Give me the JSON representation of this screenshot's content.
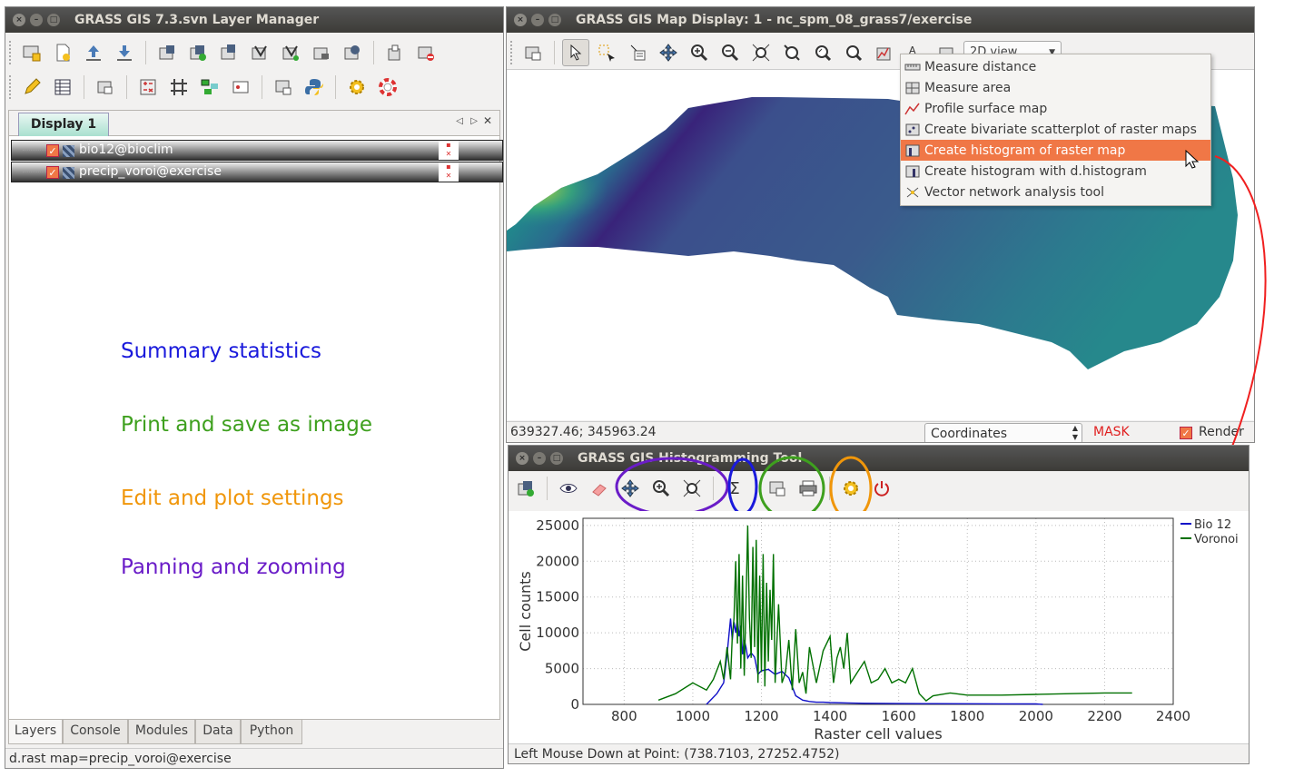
{
  "layer_manager": {
    "title": "GRASS GIS 7.3.svn Layer Manager",
    "display_tab": "Display 1",
    "layers": [
      {
        "name": "bio12@bioclim"
      },
      {
        "name": "precip_voroi@exercise"
      }
    ],
    "bottom_tabs": [
      "Layers",
      "Console",
      "Modules",
      "Data",
      "Python"
    ],
    "status": "d.rast map=precip_voroi@exercise"
  },
  "annotations": [
    {
      "text": "Summary statistics",
      "color": "#1a1adc"
    },
    {
      "text": "Print and save as image",
      "color": "#3ea01e"
    },
    {
      "text": "Edit and plot settings",
      "color": "#f0960a"
    },
    {
      "text": "Panning and zooming",
      "color": "#6a1cc8"
    }
  ],
  "map_display": {
    "title": "GRASS GIS Map Display: 1 - nc_spm_08_grass7/exercise",
    "view_select": "2D view",
    "coords": "639327.46; 345963.24",
    "coord_mode": "Coordinates",
    "mask": "MASK",
    "render": "Render",
    "menu": [
      {
        "label": "Measure distance",
        "selected": false
      },
      {
        "label": "Measure area",
        "selected": false
      },
      {
        "label": "Profile surface map",
        "selected": false
      },
      {
        "label": "Create bivariate scatterplot of raster maps",
        "selected": false
      },
      {
        "label": "Create histogram of raster map",
        "selected": true
      },
      {
        "label": "Create histogram with d.histogram",
        "selected": false
      },
      {
        "label": "Vector network analysis tool",
        "selected": false
      }
    ]
  },
  "histogram_tool": {
    "title": "GRASS GIS Histogramming Tool",
    "status": "Left Mouse Down at Point: (738.7103, 27252.4752)",
    "highlight_colors": {
      "pan_zoom": "#6a1cc8",
      "stats": "#1a1adc",
      "print": "#3ea01e",
      "settings": "#f0960a"
    }
  },
  "chart_data": {
    "type": "line",
    "xlabel": "Raster cell values",
    "ylabel": "Cell counts",
    "xlim": [
      680,
      2400
    ],
    "ylim": [
      0,
      26000
    ],
    "xticks": [
      800,
      1000,
      1200,
      1400,
      1600,
      1800,
      2000,
      2200,
      2400
    ],
    "yticks": [
      0,
      5000,
      10000,
      15000,
      20000,
      25000
    ],
    "legend_position": "top-right",
    "series": [
      {
        "name": "Bio 12",
        "color": "#1010c8",
        "x": [
          1040,
          1070,
          1090,
          1100,
          1110,
          1115,
          1120,
          1125,
          1130,
          1135,
          1140,
          1145,
          1150,
          1155,
          1160,
          1170,
          1180,
          1190,
          1200,
          1220,
          1240,
          1260,
          1280,
          1300,
          1320,
          1340,
          1360,
          1380,
          1400,
          1450,
          1500,
          1600,
          1700,
          1800,
          1900,
          2000,
          2020
        ],
        "y": [
          0,
          1500,
          3000,
          7000,
          12000,
          9000,
          11500,
          10000,
          12000,
          9500,
          11000,
          7000,
          9000,
          8000,
          6500,
          7200,
          6600,
          4200,
          4700,
          4900,
          4200,
          4600,
          3700,
          1200,
          600,
          400,
          300,
          300,
          250,
          200,
          150,
          120,
          100,
          90,
          80,
          60,
          0
        ]
      },
      {
        "name": "Voronoi",
        "color": "#007000",
        "x": [
          900,
          950,
          1000,
          1040,
          1060,
          1080,
          1090,
          1100,
          1110,
          1115,
          1120,
          1125,
          1130,
          1135,
          1140,
          1145,
          1150,
          1155,
          1160,
          1165,
          1170,
          1175,
          1180,
          1185,
          1190,
          1195,
          1200,
          1205,
          1210,
          1215,
          1220,
          1225,
          1230,
          1235,
          1240,
          1250,
          1260,
          1270,
          1280,
          1290,
          1300,
          1310,
          1320,
          1330,
          1340,
          1360,
          1380,
          1400,
          1410,
          1420,
          1430,
          1440,
          1450,
          1460,
          1480,
          1500,
          1520,
          1540,
          1560,
          1580,
          1600,
          1620,
          1640,
          1660,
          1680,
          1700,
          1750,
          1800,
          1900,
          2000,
          2100,
          2200,
          2280
        ],
        "y": [
          600,
          1500,
          3000,
          2000,
          3500,
          6000,
          3500,
          8000,
          3500,
          9500,
          12000,
          20000,
          8500,
          21000,
          5000,
          18000,
          4000,
          14000,
          25000,
          12000,
          6500,
          22000,
          8000,
          23000,
          3000,
          18000,
          4500,
          21000,
          2500,
          17000,
          6000,
          16000,
          9000,
          21000,
          3000,
          14000,
          3000,
          4500,
          9000,
          2000,
          10500,
          3000,
          4500,
          1500,
          8000,
          3000,
          7500,
          9500,
          3000,
          6500,
          8000,
          5000,
          10000,
          3000,
          4500,
          6000,
          3000,
          3500,
          5000,
          3000,
          3500,
          3000,
          5000,
          1500,
          500,
          1200,
          1600,
          1300,
          1300,
          1400,
          1500,
          1600,
          1600
        ]
      }
    ]
  }
}
